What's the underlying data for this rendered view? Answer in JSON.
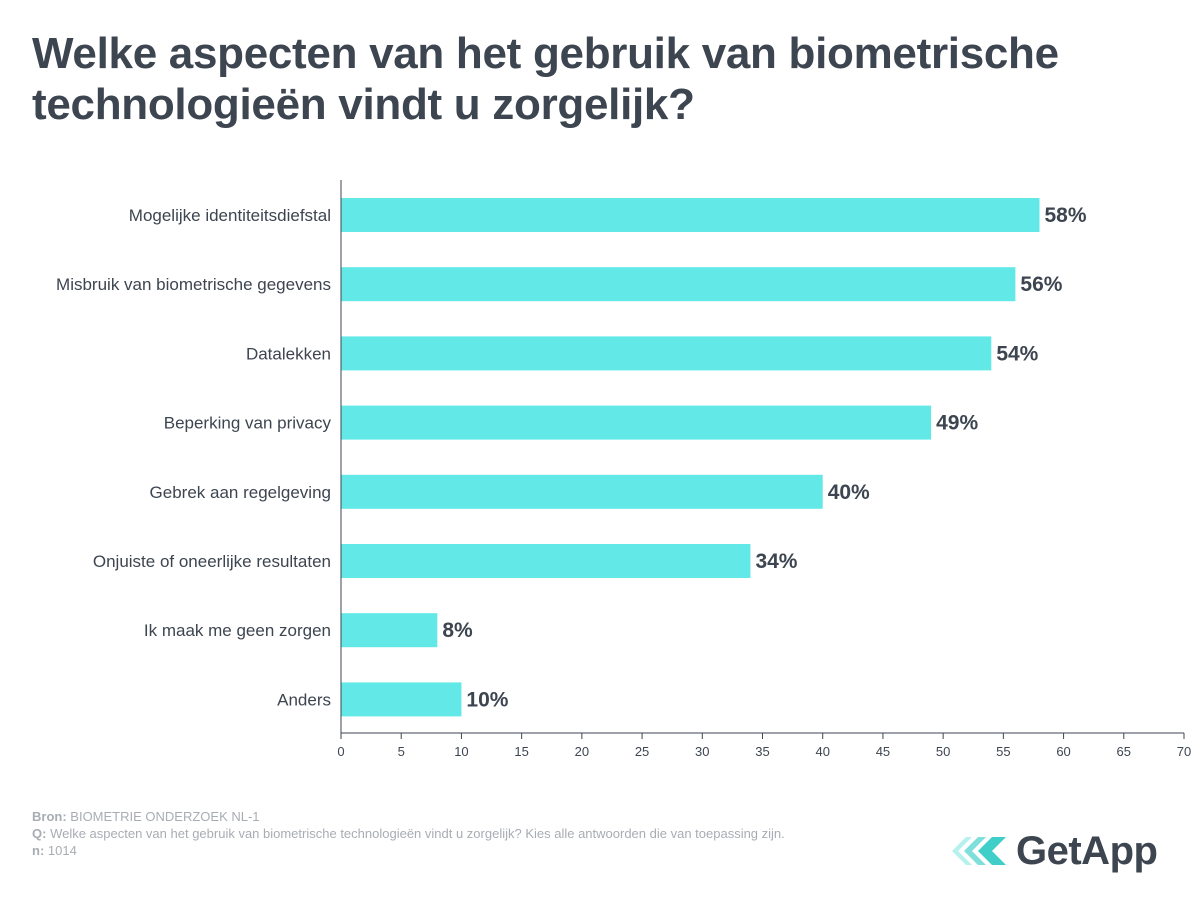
{
  "title": "Welke aspecten van het gebruik van biometrische technologieën vindt u zorgelijk?",
  "chart_data": {
    "type": "bar",
    "orientation": "horizontal",
    "categories": [
      "Mogelijke identiteitsdiefstal",
      "Misbruik van biometrische gegevens",
      "Datalekken",
      "Beperking van privacy",
      "Gebrek aan regelgeving",
      "Onjuiste of oneerlijke resultaten",
      "Ik maak me geen zorgen",
      "Anders"
    ],
    "values": [
      58,
      56,
      54,
      49,
      40,
      34,
      8,
      10
    ],
    "value_labels": [
      "58%",
      "56%",
      "54%",
      "49%",
      "40%",
      "34%",
      "8%",
      "10%"
    ],
    "xlim": [
      0,
      70
    ],
    "xticks": [
      0,
      5,
      10,
      15,
      20,
      25,
      30,
      35,
      40,
      45,
      50,
      55,
      60,
      65,
      70
    ],
    "bar_color": "#63e8e8",
    "grid": false
  },
  "footer": {
    "source_label": "Bron:",
    "source_text": " BIOMETRIE ONDERZOEK NL-1",
    "question_label": "Q:",
    "question_text": " Welke aspecten van het gebruik van biometrische technologieën vindt u zorgelijk? Kies alle antwoorden die van toepassing zijn.",
    "n_label": "n:",
    "n_text": " 1014"
  },
  "logo": {
    "text": "GetApp",
    "icon": "getapp-chevrons-icon",
    "colors": [
      "#b6f1ee",
      "#7fdfda",
      "#3fcfc8"
    ]
  }
}
